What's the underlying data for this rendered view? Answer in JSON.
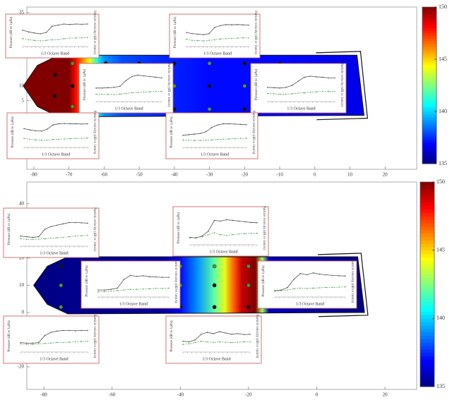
{
  "chart_data": [
    {
      "type": "contour",
      "xlim": [
        -82,
        29
      ],
      "xticks": [
        -80,
        -70,
        -60,
        -50,
        -40,
        -30,
        -20,
        -10,
        0,
        10,
        20
      ],
      "ylim": [
        -18.4,
        36.9
      ],
      "yticks": [
        35,
        10,
        5
      ],
      "colorbar": {
        "lim": [
          135,
          150
        ],
        "ticks": [
          150,
          145,
          140,
          135
        ]
      },
      "colormap": "jet",
      "field": {
        "x": [
          -84,
          -70,
          -68,
          -66,
          -64,
          -62,
          -60,
          -55,
          -45,
          -30,
          -10,
          14
        ],
        "values": [
          150,
          150,
          148,
          146,
          144,
          141,
          139,
          138,
          137.5,
          137,
          137,
          136.5
        ]
      },
      "sensors": {
        "x": [
          -69,
          -74,
          -69,
          -74,
          -69,
          -59.5,
          -50,
          -40,
          -30,
          -20,
          -10,
          -40,
          -30,
          -20,
          -40,
          -30,
          -20,
          -10
        ],
        "y": [
          17.7,
          13.8,
          10,
          6.6,
          3,
          17.7,
          17.7,
          17.7,
          17.7,
          17.7,
          17.7,
          10,
          10,
          10,
          2.1,
          2.1,
          2.1,
          2.1
        ],
        "color": [
          "#4a9a3a",
          "#111",
          "#111",
          "#111",
          "#4a9a3a",
          "#111",
          "#111",
          "#111",
          "#4a9a3a",
          "#111",
          "#111",
          "#4a9a3a",
          "#111",
          "#4a9a3a",
          "#111",
          "#4a9a3a",
          "#111",
          "#111"
        ]
      },
      "inset_labels": {
        "y": "Pressure (dB re 1µPa)",
        "y2": "Particle velocity (dB re 1nm/s)",
        "x": "1/3 Octave Band"
      },
      "inset_ylim": [
        0,
        100
      ],
      "insets": [
        {
          "pressure": [
            58,
            52,
            48,
            45,
            50,
            72,
            76,
            80,
            78,
            80,
            79,
            80
          ],
          "velocity": [
            28,
            24,
            22,
            20,
            22,
            24,
            25,
            28,
            30,
            30,
            31,
            32
          ]
        },
        {
          "pressure": [
            50,
            46,
            44,
            42,
            46,
            68,
            74,
            78,
            77,
            78,
            77,
            76
          ],
          "velocity": [
            26,
            22,
            21,
            20,
            22,
            24,
            27,
            28,
            29,
            30,
            31,
            30
          ]
        },
        {
          "pressure": [
            40,
            40,
            41,
            42,
            45,
            62,
            74,
            78,
            76,
            74,
            72,
            70
          ],
          "velocity": [
            22,
            22,
            21,
            21,
            22,
            24,
            26,
            27,
            28,
            29,
            30,
            30
          ]
        },
        {
          "pressure": [
            42,
            41,
            40,
            42,
            48,
            60,
            72,
            75,
            73,
            72,
            70,
            70
          ],
          "velocity": [
            24,
            23,
            22,
            22,
            23,
            25,
            26,
            28,
            29,
            30,
            30,
            30
          ]
        },
        {
          "pressure": [
            62,
            58,
            55,
            54,
            60,
            74,
            78,
            79,
            78,
            78,
            77,
            78
          ],
          "velocity": [
            30,
            27,
            25,
            24,
            24,
            26,
            27,
            28,
            29,
            30,
            30,
            31
          ]
        },
        {
          "pressure": [
            40,
            42,
            44,
            46,
            52,
            66,
            74,
            78,
            78,
            77,
            76,
            75
          ],
          "velocity": [
            24,
            24,
            23,
            23,
            24,
            25,
            26,
            27,
            28,
            29,
            30,
            30
          ]
        }
      ]
    },
    {
      "type": "contour",
      "xlim": [
        -85,
        29.3
      ],
      "xticks": [
        -80,
        -60,
        -40,
        -20,
        0,
        20
      ],
      "ylim": [
        -28.3,
        48
      ],
      "yticks": [
        40,
        20,
        10,
        0,
        -20
      ],
      "colorbar": {
        "lim": [
          135,
          150
        ],
        "ticks": [
          150,
          145,
          140,
          135
        ]
      },
      "colormap": "jet",
      "field": {
        "x": [
          -85,
          -45,
          -40,
          -35,
          -30,
          -27,
          -24,
          -22,
          -18,
          -16,
          -14,
          14
        ],
        "values": [
          135,
          135.5,
          137,
          139,
          142,
          144,
          147,
          149,
          150,
          143,
          136,
          135
        ]
      },
      "sensors": {
        "x": [
          -75,
          -75,
          -75,
          -40,
          -40,
          -40,
          -30,
          -30,
          -30,
          -20,
          -20,
          -20
        ],
        "y": [
          17,
          10,
          2,
          17,
          10,
          2,
          17,
          10,
          2,
          17,
          10,
          2
        ],
        "color": [
          "#111",
          "#4a9a3a",
          "#4a9a3a",
          "#4a9a3a",
          "#4a9a3a",
          "#111",
          "#4a9a3a",
          "#111",
          "#111",
          "#4a9a3a",
          "#4a9a3a",
          "#111"
        ]
      },
      "inset_labels": {
        "y": "Pressure (dB re 1µPa)",
        "y2": "Particle velocity (dB re 1nm/s)",
        "x": "1/3 Octave Band"
      },
      "inset_ylim": [
        0,
        100
      ],
      "insets": [
        {
          "pressure": [
            30,
            28,
            26,
            28,
            50,
            58,
            62,
            66,
            70,
            70,
            69,
            68
          ],
          "velocity": [
            22,
            20,
            20,
            21,
            22,
            24,
            25,
            26,
            28,
            30,
            31,
            32
          ]
        },
        {
          "pressure": [
            22,
            20,
            26,
            40,
            72,
            70,
            74,
            72,
            70,
            68,
            66,
            65
          ],
          "velocity": [
            20,
            22,
            24,
            30,
            36,
            30,
            28,
            30,
            32,
            33,
            34,
            34
          ]
        },
        {
          "pressure": [
            22,
            22,
            24,
            28,
            55,
            68,
            65,
            67,
            64,
            63,
            62,
            62
          ],
          "velocity": [
            16,
            17,
            18,
            20,
            22,
            24,
            24,
            25,
            26,
            27,
            27,
            28
          ]
        },
        {
          "pressure": [
            20,
            22,
            30,
            56,
            74,
            70,
            76,
            72,
            70,
            68,
            67,
            66
          ],
          "velocity": [
            18,
            20,
            22,
            26,
            28,
            27,
            28,
            29,
            30,
            30,
            31,
            32
          ]
        },
        {
          "pressure": [
            30,
            28,
            28,
            30,
            52,
            62,
            66,
            68,
            68,
            67,
            68,
            68
          ],
          "velocity": [
            26,
            24,
            24,
            26,
            27,
            28,
            30,
            30,
            31,
            32,
            33,
            34
          ]
        },
        {
          "pressure": [
            34,
            32,
            38,
            56,
            62,
            58,
            64,
            60,
            56,
            58,
            55,
            56
          ],
          "velocity": [
            24,
            26,
            30,
            34,
            32,
            30,
            32,
            31,
            30,
            31,
            32,
            32
          ]
        }
      ]
    }
  ]
}
